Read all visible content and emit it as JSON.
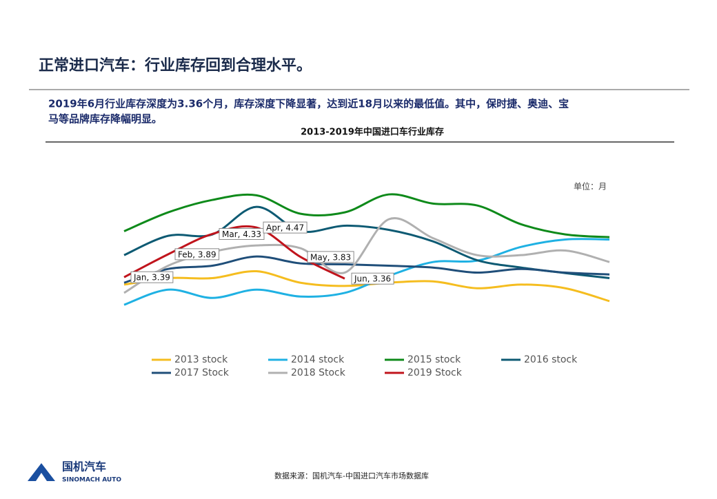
{
  "slide": {
    "title": "正常进口汽车：行业库存回到合理水平。",
    "body": [
      "2019年6月行业库存深度为3.36个月，库存深度下降显著，达到近18月以来的最低值。其中，保时捷、奥迪、宝",
      "马等品牌库存降幅明显。"
    ],
    "source": "数据来源：国机汽车-中国进口汽车市场数据库",
    "logo_cn": "国机汽车",
    "logo_en": "SINOMACH AUTO"
  },
  "chart_data": {
    "type": "line",
    "title": "2013-2019年中国进口车行业库存",
    "unit": "单位：月",
    "categories": [
      null,
      null,
      null,
      null,
      null,
      null,
      null,
      null,
      null,
      null,
      null,
      null
    ],
    "ylim": [
      2,
      6
    ],
    "series": [
      {
        "name": "2013 stock",
        "color": "#f5bd1f",
        "values": [
          3.23,
          3.37,
          3.37,
          3.52,
          3.27,
          3.2,
          3.27,
          3.3,
          3.15,
          3.23,
          3.15,
          2.87
        ]
      },
      {
        "name": "2014 stock",
        "color": "#1fb1e3",
        "values": [
          2.79,
          3.12,
          2.94,
          3.12,
          2.97,
          3.05,
          3.42,
          3.72,
          3.75,
          4.05,
          4.21,
          4.21
        ]
      },
      {
        "name": "2015 stock",
        "color": "#0e8a1a",
        "values": [
          4.39,
          4.8,
          5.07,
          5.17,
          4.77,
          4.8,
          5.19,
          4.99,
          4.95,
          4.54,
          4.32,
          4.26
        ]
      },
      {
        "name": "2016 stock",
        "color": "#0d5a73",
        "values": [
          3.87,
          4.29,
          4.32,
          4.92,
          4.39,
          4.51,
          4.42,
          4.17,
          3.76,
          3.6,
          3.48,
          3.37
        ]
      },
      {
        "name": "2017 Stock",
        "color": "#1f4e79",
        "values": [
          3.27,
          3.57,
          3.64,
          3.84,
          3.69,
          3.67,
          3.64,
          3.6,
          3.49,
          3.57,
          3.49,
          3.45
        ]
      },
      {
        "name": "2018 Stock",
        "color": "#b0b0b0",
        "values": [
          3.05,
          3.64,
          3.94,
          4.08,
          4.02,
          3.49,
          4.65,
          4.24,
          3.87,
          3.87,
          3.97,
          3.72
        ]
      },
      {
        "name": "2019 Stock",
        "color": "#c0141c",
        "values": [
          3.39,
          3.89,
          4.33,
          4.47,
          3.83,
          3.36,
          null,
          null,
          null,
          null,
          null,
          null
        ],
        "value_labels": [
          "Jan, 3.39",
          "Feb, 3.89",
          "Mar, 4.33",
          "Apr, 4.47",
          "May, 3.83",
          "Jun, 3.36",
          null,
          null,
          null,
          null,
          null,
          null
        ]
      }
    ]
  }
}
